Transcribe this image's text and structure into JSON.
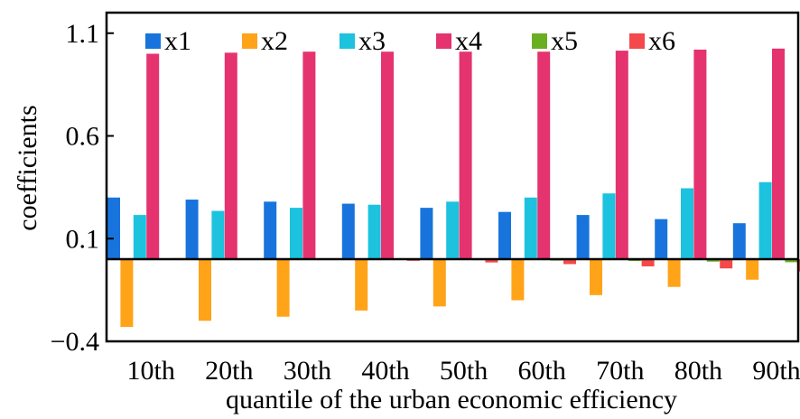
{
  "chart_data": {
    "type": "bar",
    "title": "",
    "xlabel": "quantile of the urban economic efficiency",
    "ylabel": "coefficients",
    "categories": [
      "10th",
      "20th",
      "30th",
      "40th",
      "50th",
      "60th",
      "70th",
      "80th",
      "90th"
    ],
    "ylim": [
      -0.4,
      1.2
    ],
    "yticks": [
      -0.4,
      0.1,
      0.6,
      1.1
    ],
    "ytick_labels": [
      "−0.4",
      "0.1",
      "0.6",
      "1.1"
    ],
    "grid": false,
    "legend_position": "top",
    "series": [
      {
        "name": "x1",
        "color": "#1874DC",
        "values": [
          0.3,
          0.29,
          0.28,
          0.27,
          0.25,
          0.23,
          0.215,
          0.195,
          0.175
        ]
      },
      {
        "name": "x2",
        "color": "#FFA319",
        "values": [
          -0.33,
          -0.3,
          -0.28,
          -0.25,
          -0.23,
          -0.2,
          -0.175,
          -0.135,
          -0.1
        ]
      },
      {
        "name": "x3",
        "color": "#1CC2DE",
        "values": [
          0.215,
          0.235,
          0.25,
          0.265,
          0.28,
          0.3,
          0.32,
          0.345,
          0.375
        ]
      },
      {
        "name": "x4",
        "color": "#E5336F",
        "values": [
          1.0,
          1.005,
          1.01,
          1.01,
          1.01,
          1.01,
          1.015,
          1.02,
          1.025
        ]
      },
      {
        "name": "x5",
        "color": "#6AAE22",
        "values": [
          0.0,
          0.0,
          0.0,
          -0.003,
          -0.005,
          -0.007,
          -0.009,
          -0.012,
          -0.015
        ]
      },
      {
        "name": "x6",
        "color": "#F4484A",
        "values": [
          0.005,
          0.002,
          -0.002,
          -0.008,
          -0.016,
          -0.024,
          -0.035,
          -0.045,
          -0.06
        ]
      }
    ]
  }
}
